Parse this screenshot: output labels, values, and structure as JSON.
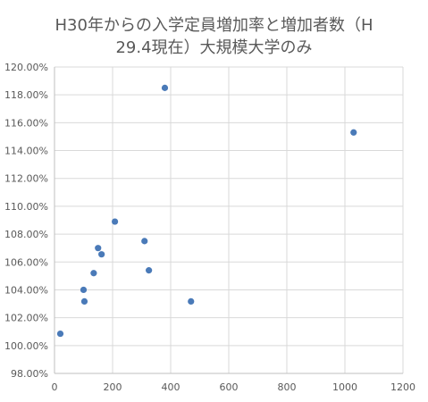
{
  "chart_data": {
    "type": "scatter",
    "title_line1": "H30年からの入学定員増加率と増加者数（H",
    "title_line2": "29.4現在）大規模大学のみ",
    "xlabel": "",
    "ylabel": "",
    "xlim": [
      0,
      1200
    ],
    "ylim": [
      0.98,
      1.2
    ],
    "x_ticks": [
      0,
      200,
      400,
      600,
      800,
      1000,
      1200
    ],
    "x_tick_labels": [
      "0",
      "200",
      "400",
      "600",
      "800",
      "1000",
      "1200"
    ],
    "y_ticks": [
      0.98,
      1.0,
      1.02,
      1.04,
      1.06,
      1.08,
      1.1,
      1.12,
      1.14,
      1.16,
      1.18,
      1.2
    ],
    "y_tick_labels": [
      "98.00%",
      "100.00%",
      "102.00%",
      "104.00%",
      "106.00%",
      "108.00%",
      "110.00%",
      "112.00%",
      "114.00%",
      "116.00%",
      "118.00%",
      "120.00%"
    ],
    "grid": true,
    "marker_color": "#4a7ab8",
    "points": [
      {
        "x": 20,
        "y": 1.0085
      },
      {
        "x": 100,
        "y": 1.04
      },
      {
        "x": 103,
        "y": 1.0317
      },
      {
        "x": 135,
        "y": 1.052
      },
      {
        "x": 150,
        "y": 1.07
      },
      {
        "x": 162,
        "y": 1.0655
      },
      {
        "x": 208,
        "y": 1.089
      },
      {
        "x": 310,
        "y": 1.075
      },
      {
        "x": 325,
        "y": 1.054
      },
      {
        "x": 380,
        "y": 1.185
      },
      {
        "x": 470,
        "y": 1.0317
      },
      {
        "x": 1030,
        "y": 1.153
      }
    ]
  }
}
